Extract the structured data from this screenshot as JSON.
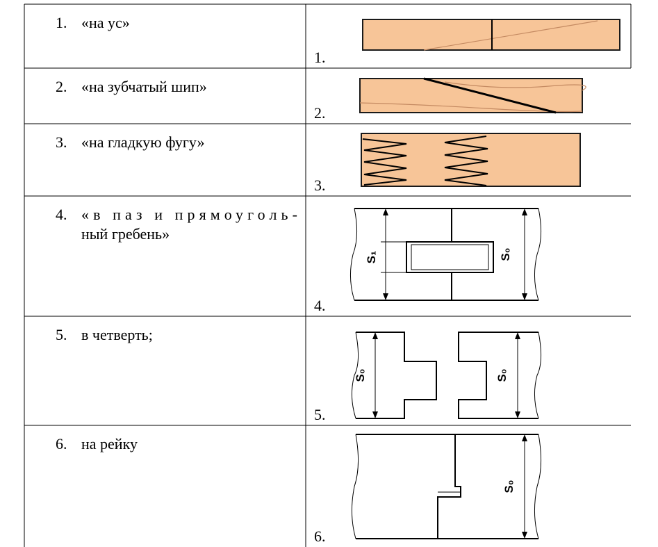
{
  "table": {
    "rows": [
      {
        "number": "1.",
        "lines": [
          "«на ус»"
        ],
        "figure_number": "1.",
        "dimension_labels": []
      },
      {
        "number": "2.",
        "lines": [
          "«на зубчатый шип»"
        ],
        "figure_number": "2.",
        "dimension_labels": []
      },
      {
        "number": "3.",
        "lines": [
          "«на гладкую фугу»"
        ],
        "figure_number": "3.",
        "dimension_labels": []
      },
      {
        "number": "4.",
        "lines": [
          "«в паз и прямоуголь-",
          "ный гребень»"
        ],
        "figure_number": "4.",
        "dimension_labels": [
          "S₁",
          "S₀"
        ]
      },
      {
        "number": "5.",
        "lines": [
          "в четверть;"
        ],
        "figure_number": "5.",
        "dimension_labels": [
          "S₀",
          "S₀"
        ]
      },
      {
        "number": "6.",
        "lines": [
          "на рейку"
        ],
        "figure_number": "6.",
        "dimension_labels": [
          "S₀"
        ]
      }
    ]
  }
}
